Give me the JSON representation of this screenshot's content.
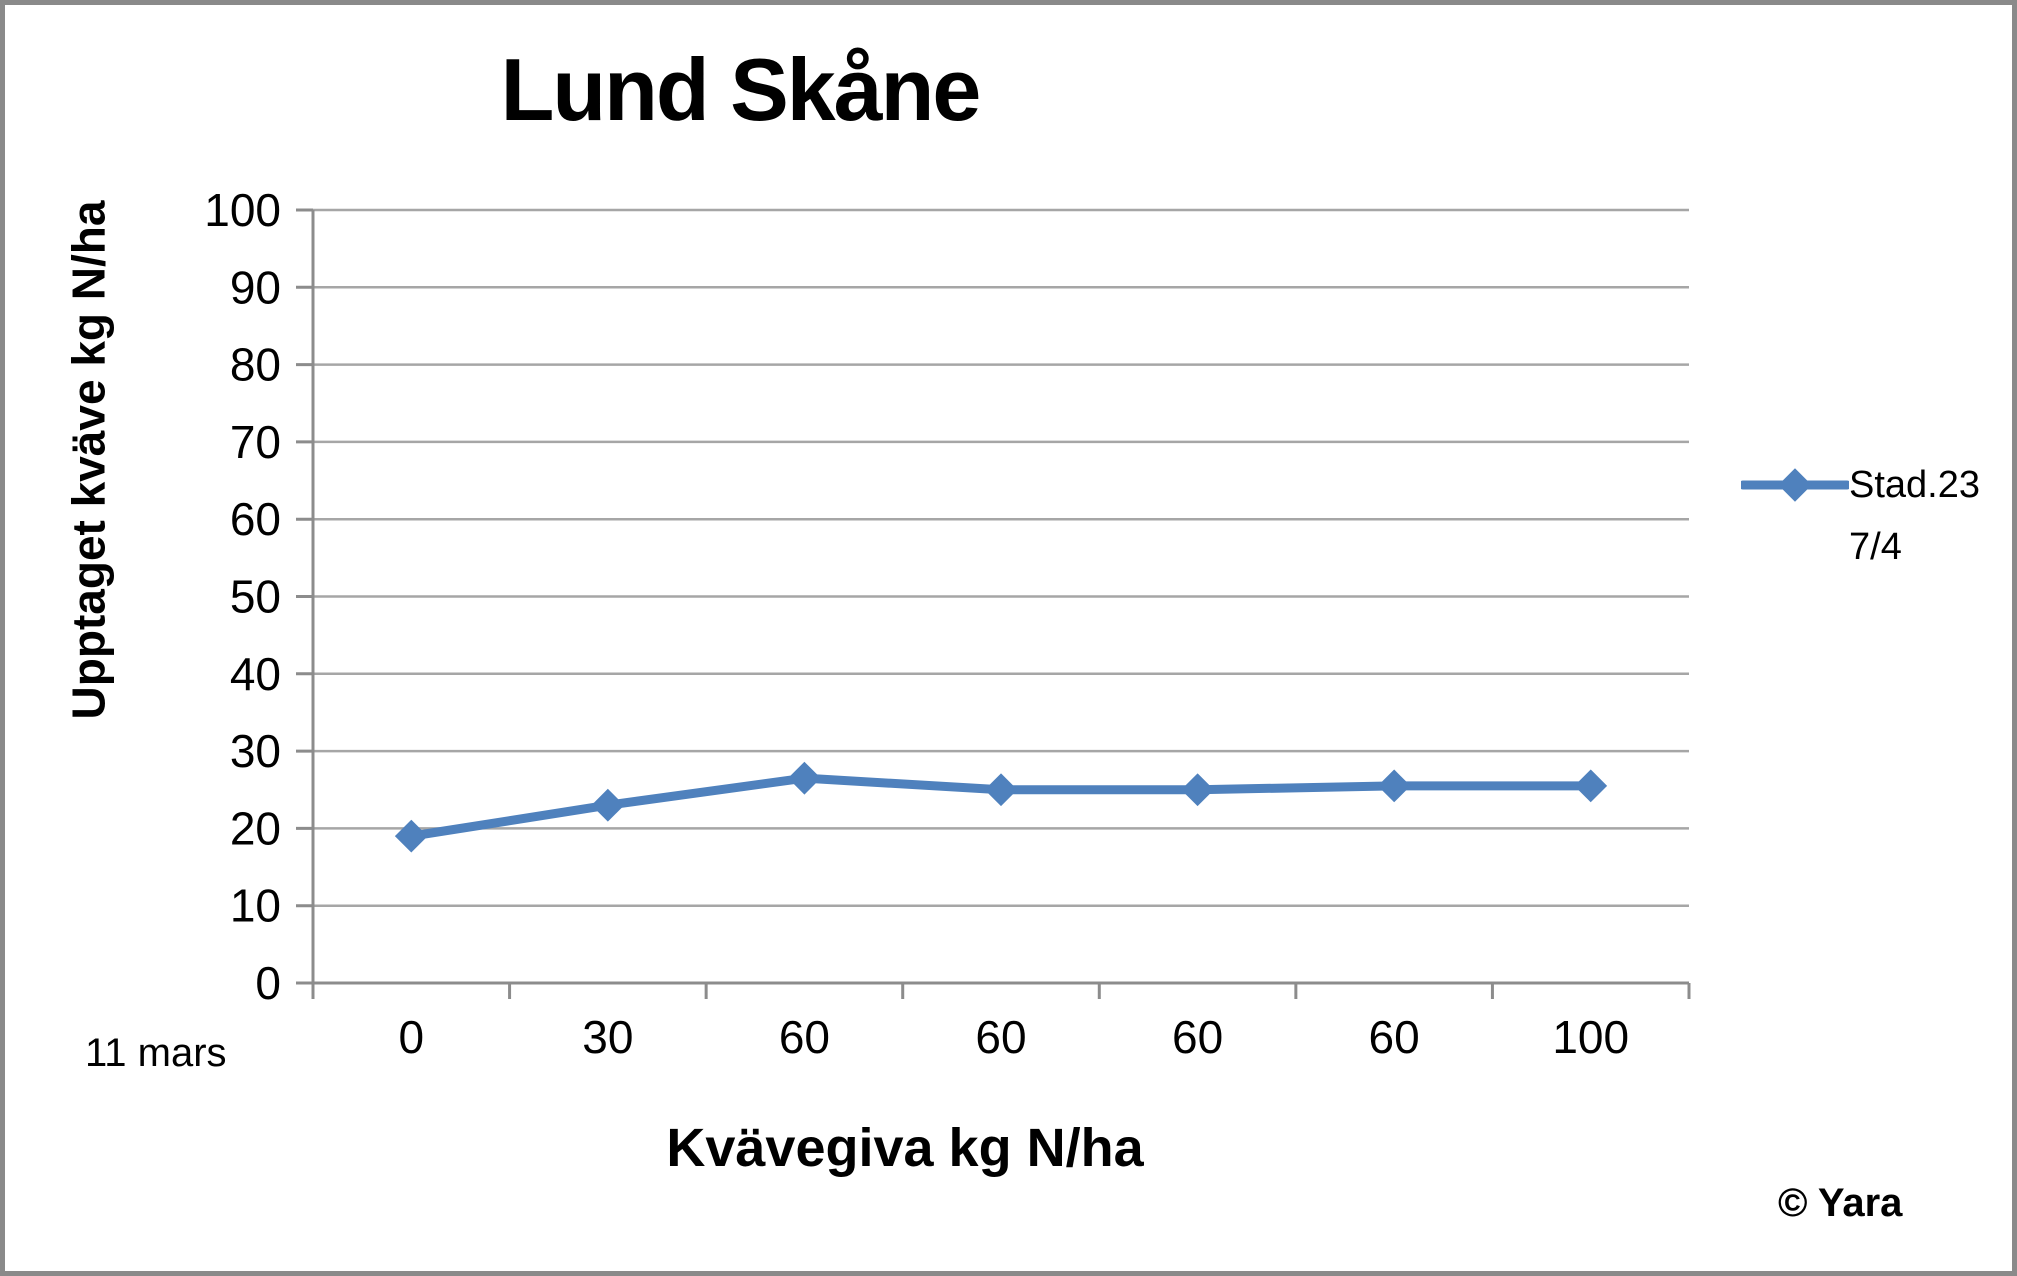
{
  "title": "Lund Skåne",
  "note_left": "11 mars",
  "credit": "© Yara",
  "legend": {
    "line1": "Stad.23",
    "line2": "7/4"
  },
  "colors": {
    "series": "#4f81bd",
    "gridline": "#a6a6a6",
    "axis": "#8c8c8c",
    "text": "#000000",
    "frame": "#8a8a8a"
  },
  "chart_data": {
    "type": "line",
    "title": "Lund Skåne",
    "xlabel": "Kvävegiva kg N/ha",
    "ylabel": "Upptaget kväve kg N/ha",
    "categories": [
      "0",
      "30",
      "60",
      "60",
      "60",
      "60",
      "100"
    ],
    "series": [
      {
        "name": "Stad.23 7/4",
        "values": [
          19,
          23,
          26.5,
          25,
          25,
          25.5,
          25.5
        ],
        "color": "#4f81bd",
        "marker": "diamond",
        "line_width": 9
      }
    ],
    "ylim": [
      0,
      100
    ],
    "ytick_step": 10,
    "grid": true,
    "legend_position": "right",
    "annotations": [
      "11 mars",
      "© Yara"
    ]
  }
}
